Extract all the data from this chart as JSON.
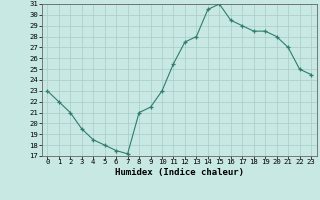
{
  "x": [
    0,
    1,
    2,
    3,
    4,
    5,
    6,
    7,
    8,
    9,
    10,
    11,
    12,
    13,
    14,
    15,
    16,
    17,
    18,
    19,
    20,
    21,
    22,
    23
  ],
  "y": [
    23,
    22,
    21,
    19.5,
    18.5,
    18,
    17.5,
    17.2,
    21,
    21.5,
    23,
    25.5,
    27.5,
    28,
    30.5,
    31,
    29.5,
    29,
    28.5,
    28.5,
    28,
    27,
    25,
    24.5
  ],
  "xlabel": "Humidex (Indice chaleur)",
  "ylim": [
    17,
    31
  ],
  "xlim": [
    -0.5,
    23.5
  ],
  "yticks": [
    17,
    18,
    19,
    20,
    21,
    22,
    23,
    24,
    25,
    26,
    27,
    28,
    29,
    30,
    31
  ],
  "xticks": [
    0,
    1,
    2,
    3,
    4,
    5,
    6,
    7,
    8,
    9,
    10,
    11,
    12,
    13,
    14,
    15,
    16,
    17,
    18,
    19,
    20,
    21,
    22,
    23
  ],
  "line_color": "#2e7d6e",
  "bg_color": "#c8e8e4",
  "grid_color": "#a8ccc8",
  "tick_label_fontsize": 5.2,
  "xlabel_fontsize": 6.5
}
